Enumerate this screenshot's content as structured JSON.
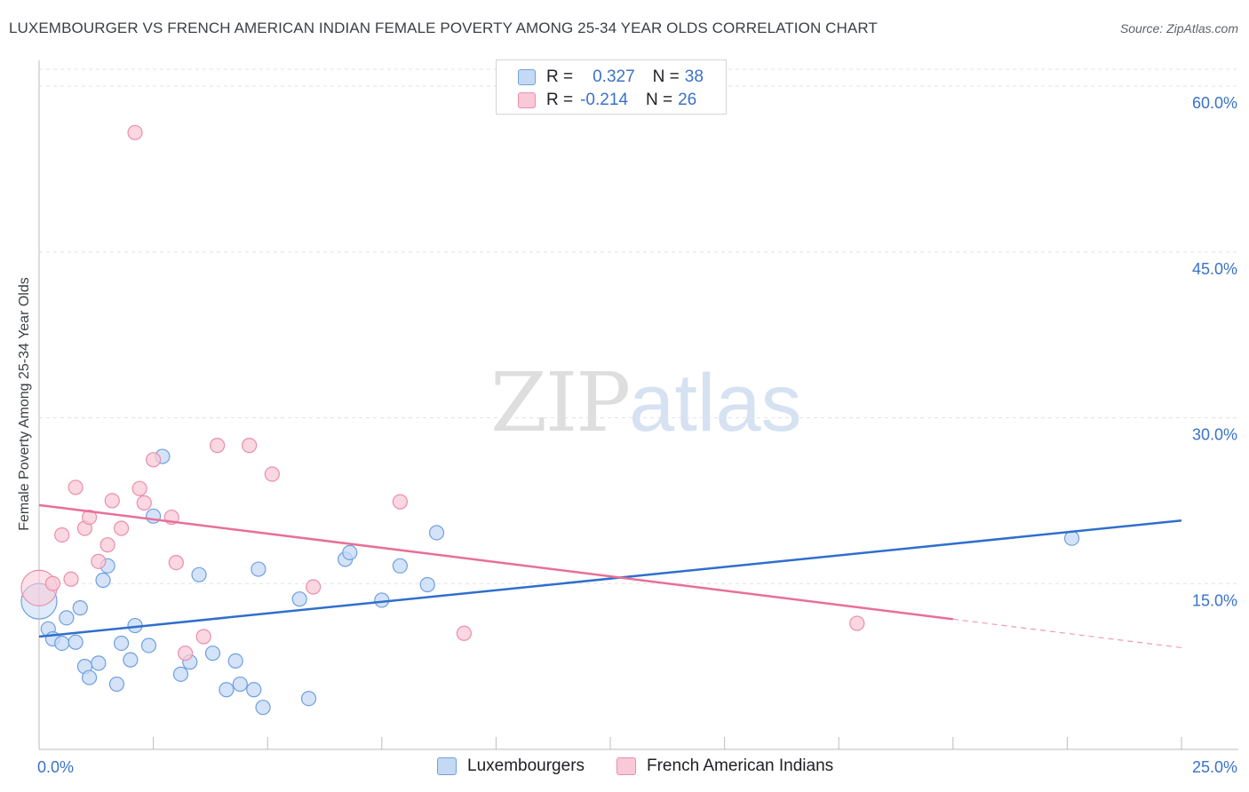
{
  "header": {
    "title": "LUXEMBOURGER VS FRENCH AMERICAN INDIAN FEMALE POVERTY AMONG 25-34 YEAR OLDS CORRELATION CHART",
    "source": "Source: ZipAtlas.com"
  },
  "watermark": {
    "zip": "ZIP",
    "atlas": "atlas"
  },
  "legend": {
    "r_label": "R =",
    "n_label": "N =",
    "blue": {
      "r": "0.327",
      "n": "38"
    },
    "pink": {
      "r": "-0.214",
      "n": "26"
    }
  },
  "colors": {
    "blue_fill": "#c5d9f5",
    "blue_stroke": "#6f9fe0",
    "blue_line": "#2f6fcc",
    "pink_fill": "#f9c9d7",
    "pink_stroke": "#ea8eab",
    "pink_line": "#e86f97",
    "tick_label": "#3a72c9",
    "grid": "#e3e3e3"
  },
  "chart_data": {
    "type": "scatter",
    "title": "LUXEMBOURGER VS FRENCH AMERICAN INDIAN FEMALE POVERTY AMONG 25-34 YEAR OLDS CORRELATION CHART",
    "xlabel": "",
    "ylabel": "Female Poverty Among 25-34 Year Olds",
    "xlim": [
      0,
      25
    ],
    "ylim": [
      0,
      60
    ],
    "x_tick_labels": [
      {
        "value": 0,
        "label": "0.0%"
      },
      {
        "value": 25,
        "label": "25.0%"
      }
    ],
    "y_tick_labels": [
      {
        "value": 15,
        "label": "15.0%"
      },
      {
        "value": 30,
        "label": "30.0%"
      },
      {
        "value": 45,
        "label": "45.0%"
      },
      {
        "value": 60,
        "label": "60.0%"
      }
    ],
    "legend_position": "bottom",
    "series": [
      {
        "name": "Luxembourgers",
        "color": "blue",
        "r": 0.327,
        "n": 38,
        "trend": {
          "x_start": 0,
          "y_start": 10.2,
          "x_end": 25,
          "y_end": 20.7,
          "dashed_from": null
        },
        "points": [
          {
            "x": 0.0,
            "y": 13.4,
            "size": "large"
          },
          {
            "x": 0.2,
            "y": 10.9
          },
          {
            "x": 0.3,
            "y": 10.0
          },
          {
            "x": 0.5,
            "y": 9.6
          },
          {
            "x": 0.6,
            "y": 11.9
          },
          {
            "x": 0.8,
            "y": 9.7
          },
          {
            "x": 0.9,
            "y": 12.8
          },
          {
            "x": 1.0,
            "y": 7.5
          },
          {
            "x": 1.1,
            "y": 6.5
          },
          {
            "x": 1.3,
            "y": 7.8
          },
          {
            "x": 1.4,
            "y": 15.3
          },
          {
            "x": 1.5,
            "y": 16.6
          },
          {
            "x": 1.7,
            "y": 5.9
          },
          {
            "x": 1.8,
            "y": 9.6
          },
          {
            "x": 2.0,
            "y": 8.1
          },
          {
            "x": 2.1,
            "y": 11.2
          },
          {
            "x": 2.4,
            "y": 9.4
          },
          {
            "x": 2.5,
            "y": 21.1
          },
          {
            "x": 2.7,
            "y": 26.5
          },
          {
            "x": 3.1,
            "y": 6.8
          },
          {
            "x": 3.3,
            "y": 7.9
          },
          {
            "x": 3.5,
            "y": 15.8
          },
          {
            "x": 3.8,
            "y": 8.7
          },
          {
            "x": 4.1,
            "y": 5.4
          },
          {
            "x": 4.3,
            "y": 8.0
          },
          {
            "x": 4.4,
            "y": 5.9
          },
          {
            "x": 4.7,
            "y": 5.4
          },
          {
            "x": 4.8,
            "y": 16.3
          },
          {
            "x": 4.9,
            "y": 3.8
          },
          {
            "x": 5.7,
            "y": 13.6
          },
          {
            "x": 5.9,
            "y": 4.6
          },
          {
            "x": 6.7,
            "y": 17.2
          },
          {
            "x": 6.8,
            "y": 17.8
          },
          {
            "x": 7.5,
            "y": 13.5
          },
          {
            "x": 7.9,
            "y": 16.6
          },
          {
            "x": 8.5,
            "y": 14.9
          },
          {
            "x": 8.7,
            "y": 19.6
          },
          {
            "x": 22.6,
            "y": 19.1
          }
        ]
      },
      {
        "name": "French American Indians",
        "color": "pink",
        "r": -0.214,
        "n": 26,
        "trend": {
          "x_start": 0,
          "y_start": 22.1,
          "x_end": 25,
          "y_end": 9.2,
          "dashed_from": 20.0
        },
        "points": [
          {
            "x": 0.0,
            "y": 14.6,
            "size": "large"
          },
          {
            "x": 0.3,
            "y": 15.0
          },
          {
            "x": 0.5,
            "y": 19.4
          },
          {
            "x": 0.7,
            "y": 15.4
          },
          {
            "x": 0.8,
            "y": 23.7
          },
          {
            "x": 1.0,
            "y": 20.0
          },
          {
            "x": 1.1,
            "y": 21.0
          },
          {
            "x": 1.3,
            "y": 17.0
          },
          {
            "x": 1.5,
            "y": 18.5
          },
          {
            "x": 1.6,
            "y": 22.5
          },
          {
            "x": 1.8,
            "y": 20.0
          },
          {
            "x": 2.1,
            "y": 55.8
          },
          {
            "x": 2.2,
            "y": 23.6
          },
          {
            "x": 2.3,
            "y": 22.3
          },
          {
            "x": 2.5,
            "y": 26.2
          },
          {
            "x": 2.9,
            "y": 21.0
          },
          {
            "x": 3.0,
            "y": 16.9
          },
          {
            "x": 3.2,
            "y": 8.7
          },
          {
            "x": 3.6,
            "y": 10.2
          },
          {
            "x": 3.9,
            "y": 27.5
          },
          {
            "x": 4.6,
            "y": 27.5
          },
          {
            "x": 5.1,
            "y": 24.9
          },
          {
            "x": 6.0,
            "y": 14.7
          },
          {
            "x": 7.9,
            "y": 22.4
          },
          {
            "x": 9.3,
            "y": 10.5
          },
          {
            "x": 17.9,
            "y": 11.4
          }
        ]
      }
    ]
  }
}
